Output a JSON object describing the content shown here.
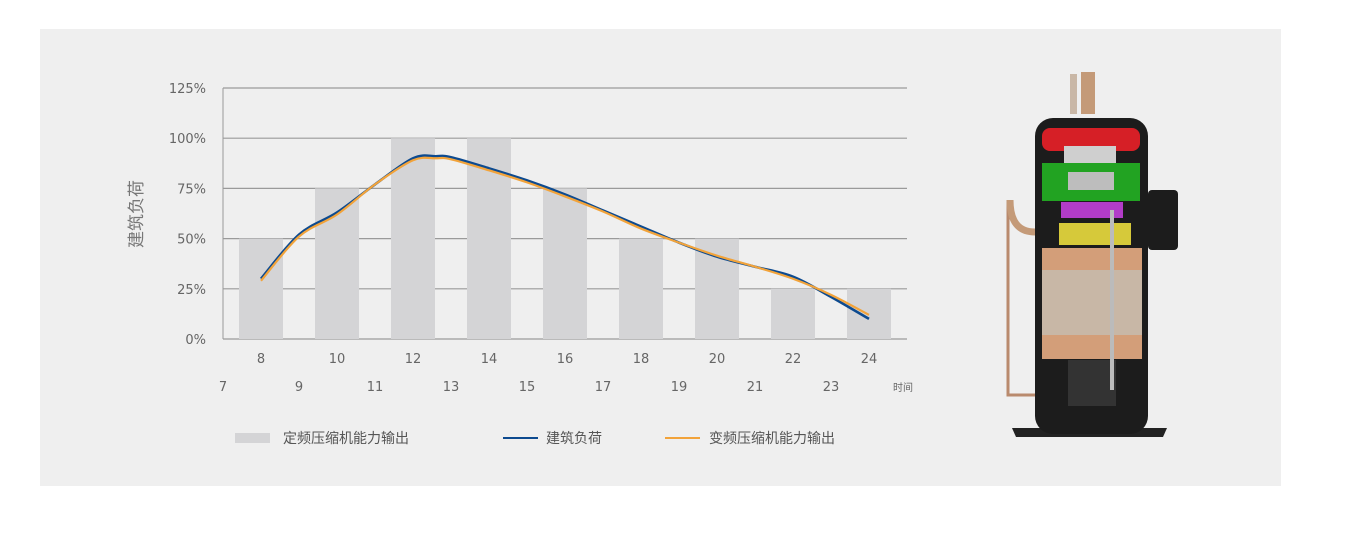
{
  "chart_data": {
    "type": "bar+line",
    "ylabel": "建筑负荷",
    "xlabel": "时间",
    "ylim": [
      0,
      125
    ],
    "yticks": [
      "0%",
      "25%",
      "50%",
      "75%",
      "100%",
      "125%"
    ],
    "ytick_values": [
      0,
      25,
      50,
      75,
      100,
      125
    ],
    "grid": true,
    "x_upper_labels": [
      "8",
      "10",
      "12",
      "14",
      "16",
      "18",
      "20",
      "22",
      "24"
    ],
    "x_lower_labels": [
      "7",
      "9",
      "11",
      "13",
      "15",
      "17",
      "19",
      "21",
      "23"
    ],
    "bars": {
      "name": "定频压缩机能力输出",
      "color": "#d4d4d6",
      "x": [
        8,
        10,
        12,
        14,
        16,
        18,
        20,
        22,
        24
      ],
      "values": [
        50,
        75,
        100,
        100,
        75,
        50,
        50,
        25,
        25
      ]
    },
    "series": [
      {
        "name": "建筑负荷",
        "color": "#0d4a8f",
        "x": [
          8,
          9,
          10,
          11,
          12,
          12.6,
          13,
          14,
          15,
          16,
          17,
          18,
          19,
          20,
          21,
          22,
          23,
          24
        ],
        "values": [
          30,
          52,
          63,
          77,
          90,
          91,
          90.5,
          85,
          79,
          72,
          64,
          56,
          48,
          41,
          36,
          31,
          21,
          10
        ]
      },
      {
        "name": "变频压缩机能力输出",
        "color": "#f2a33a",
        "x": [
          8,
          9,
          10,
          11,
          12,
          12.6,
          13,
          14,
          15,
          16,
          17,
          18,
          19,
          20,
          21,
          22,
          23,
          24
        ],
        "values": [
          29,
          51,
          62,
          77,
          89,
          90,
          89.5,
          84,
          78,
          71,
          63.5,
          55,
          48,
          41.5,
          36,
          30,
          22,
          12
        ]
      }
    ],
    "legend_placement": "bottom"
  },
  "illustration": {
    "name": "compressor-cutaway"
  }
}
